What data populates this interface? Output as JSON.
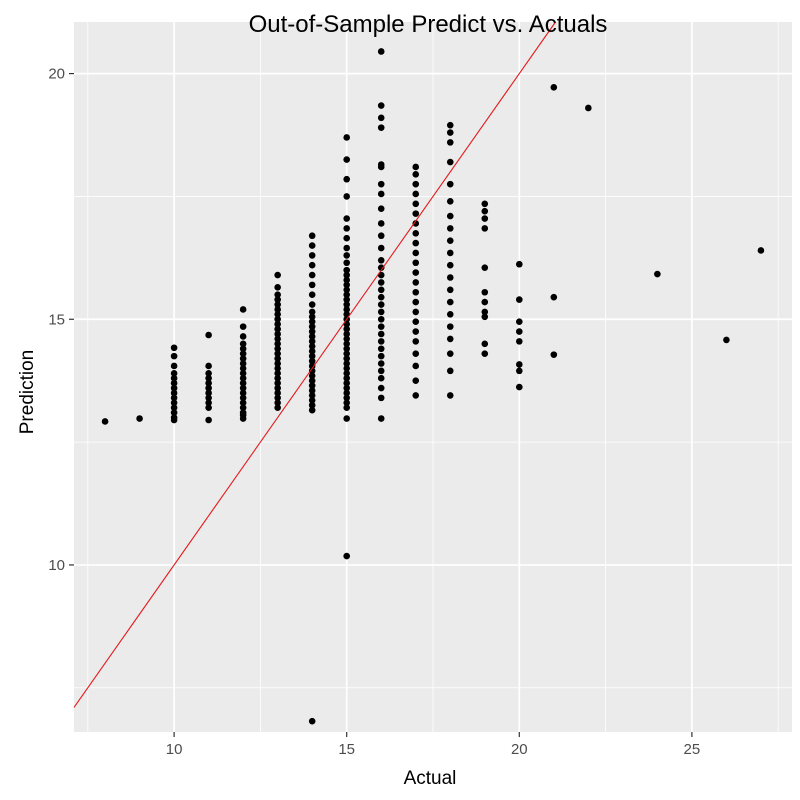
{
  "chart_data": {
    "type": "scatter",
    "title": "Out-of-Sample Predict vs. Actuals",
    "xlabel": "Actual",
    "ylabel": "Prediction",
    "xlim": [
      7.1,
      27.9
    ],
    "ylim": [
      6.6,
      21.05
    ],
    "x_ticks": [
      10,
      15,
      20,
      25
    ],
    "y_ticks": [
      10,
      15,
      20
    ],
    "x_tick_labels": [
      "10",
      "15",
      "20",
      "25"
    ],
    "y_tick_labels": [
      "10",
      "15",
      "20"
    ],
    "grid": true,
    "colors": {
      "panel": "#ebebeb",
      "grid": "#ffffff",
      "points": "#000000",
      "reference_line": "#e41a1c"
    },
    "reference_line": {
      "slope": 1,
      "intercept": 0
    },
    "point_columns": [
      {
        "x": 8,
        "y": [
          12.92
        ]
      },
      {
        "x": 9,
        "y": [
          12.98
        ]
      },
      {
        "x": 10,
        "y": [
          12.95,
          13.0,
          13.1,
          13.2,
          13.3,
          13.4,
          13.5,
          13.6,
          13.7,
          13.8,
          13.9,
          14.05,
          14.25,
          14.42
        ]
      },
      {
        "x": 11,
        "y": [
          12.95,
          13.2,
          13.3,
          13.4,
          13.5,
          13.6,
          13.7,
          13.8,
          13.9,
          14.05,
          14.68
        ]
      },
      {
        "x": 12,
        "y": [
          12.98,
          13.05,
          13.1,
          13.2,
          13.3,
          13.4,
          13.5,
          13.6,
          13.7,
          13.8,
          13.9,
          14.0,
          14.1,
          14.2,
          14.3,
          14.4,
          14.5,
          14.65,
          14.85,
          15.2
        ]
      },
      {
        "x": 13,
        "y": [
          13.2,
          13.3,
          13.4,
          13.5,
          13.6,
          13.7,
          13.8,
          13.9,
          14.0,
          14.1,
          14.2,
          14.3,
          14.4,
          14.5,
          14.6,
          14.7,
          14.8,
          14.9,
          15.0,
          15.1,
          15.2,
          15.3,
          15.4,
          15.5,
          15.65,
          15.9
        ]
      },
      {
        "x": 14,
        "y": [
          6.82,
          13.15,
          13.25,
          13.35,
          13.45,
          13.55,
          13.65,
          13.75,
          13.85,
          13.95,
          14.05,
          14.15,
          14.25,
          14.35,
          14.45,
          14.55,
          14.65,
          14.75,
          14.85,
          14.95,
          15.05,
          15.15,
          15.3,
          15.5,
          15.7,
          15.9,
          16.1,
          16.3,
          16.5,
          16.7
        ]
      },
      {
        "x": 15,
        "y": [
          10.18,
          12.98,
          13.2,
          13.3,
          13.4,
          13.5,
          13.6,
          13.7,
          13.8,
          13.9,
          14.0,
          14.1,
          14.2,
          14.3,
          14.4,
          14.5,
          14.6,
          14.7,
          14.8,
          14.9,
          15.0,
          15.1,
          15.2,
          15.3,
          15.4,
          15.5,
          15.6,
          15.7,
          15.8,
          15.9,
          16.0,
          16.15,
          16.3,
          16.45,
          16.65,
          16.85,
          17.05,
          17.5,
          17.85,
          18.25,
          18.7
        ]
      },
      {
        "x": 16,
        "y": [
          12.98,
          13.4,
          13.6,
          13.8,
          13.95,
          14.1,
          14.25,
          14.4,
          14.55,
          14.7,
          14.85,
          15.0,
          15.15,
          15.3,
          15.45,
          15.6,
          15.75,
          15.9,
          16.05,
          16.2,
          16.45,
          16.7,
          16.95,
          17.25,
          17.55,
          17.75,
          18.1,
          18.15,
          18.9,
          19.1,
          19.35,
          20.45
        ]
      },
      {
        "x": 17,
        "y": [
          13.45,
          13.75,
          14.05,
          14.3,
          14.55,
          14.75,
          14.95,
          15.15,
          15.35,
          15.55,
          15.75,
          15.95,
          16.15,
          16.35,
          16.55,
          16.75,
          16.95,
          17.15,
          17.35,
          17.55,
          17.75,
          17.95,
          18.1
        ]
      },
      {
        "x": 18,
        "y": [
          13.45,
          13.95,
          14.3,
          14.6,
          14.85,
          15.1,
          15.35,
          15.6,
          15.85,
          16.1,
          16.35,
          16.6,
          16.85,
          17.1,
          17.4,
          17.75,
          18.2,
          18.6,
          18.8,
          18.95
        ]
      },
      {
        "x": 19,
        "y": [
          14.3,
          14.5,
          15.05,
          15.15,
          15.35,
          15.55,
          16.05,
          16.85,
          17.05,
          17.2,
          17.35
        ]
      },
      {
        "x": 20,
        "y": [
          13.62,
          13.95,
          14.08,
          14.55,
          14.75,
          14.95,
          15.4,
          16.12
        ]
      },
      {
        "x": 21,
        "y": [
          14.28,
          15.45,
          19.72
        ]
      },
      {
        "x": 22,
        "y": [
          19.3
        ]
      },
      {
        "x": 24,
        "y": [
          15.92
        ]
      },
      {
        "x": 26,
        "y": [
          14.58
        ]
      },
      {
        "x": 27,
        "y": [
          16.4
        ]
      }
    ]
  }
}
